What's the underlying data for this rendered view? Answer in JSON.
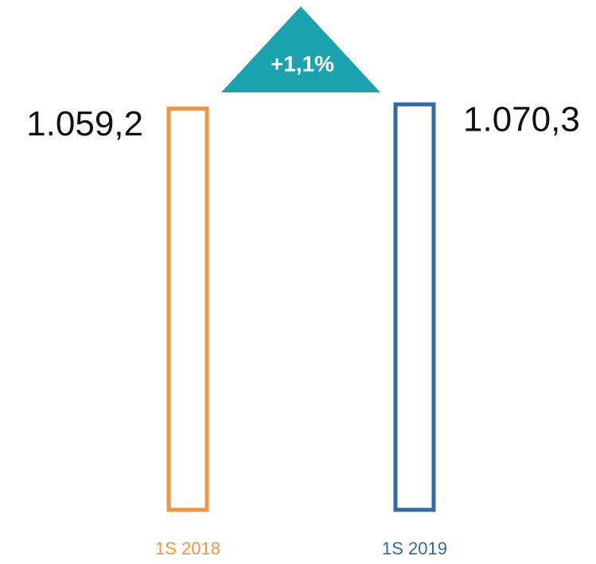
{
  "chart_data": {
    "type": "bar",
    "categories": [
      "1S 2018",
      "1S 2019"
    ],
    "values": [
      1059.2,
      1070.3
    ],
    "value_labels": [
      "1.059,2",
      "1.070,3"
    ],
    "colors": [
      "#f39440",
      "#336aa5"
    ],
    "annotation": "+1,1%",
    "annotation_color": "#1aa3ae"
  }
}
